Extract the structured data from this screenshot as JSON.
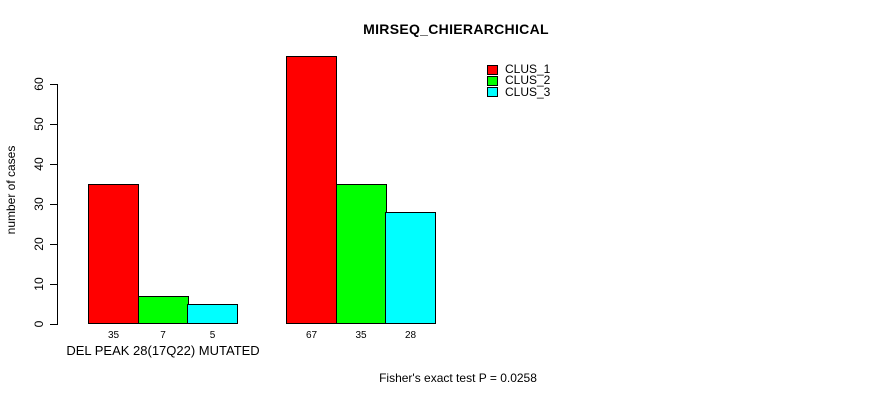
{
  "chart_data": {
    "type": "bar",
    "title": "MIRSEQ_CHIERARCHICAL",
    "xlabel": "",
    "ylabel": "number of cases",
    "yticks": [
      0,
      10,
      20,
      30,
      40,
      50,
      60
    ],
    "ylim": [
      0,
      67
    ],
    "grid": false,
    "legend_position": "top-right",
    "series": [
      "CLUS_1",
      "CLUS_2",
      "CLUS_3"
    ],
    "colors": [
      "#FF0000",
      "#00FF00",
      "#00FFFF"
    ],
    "groups": [
      {
        "label": "DEL PEAK 28(17Q22) MUTATED",
        "values": [
          35,
          7,
          5
        ]
      },
      {
        "label": "",
        "values": [
          67,
          35,
          28
        ]
      }
    ],
    "annotation": "Fisher's exact test P = 0.0258"
  }
}
